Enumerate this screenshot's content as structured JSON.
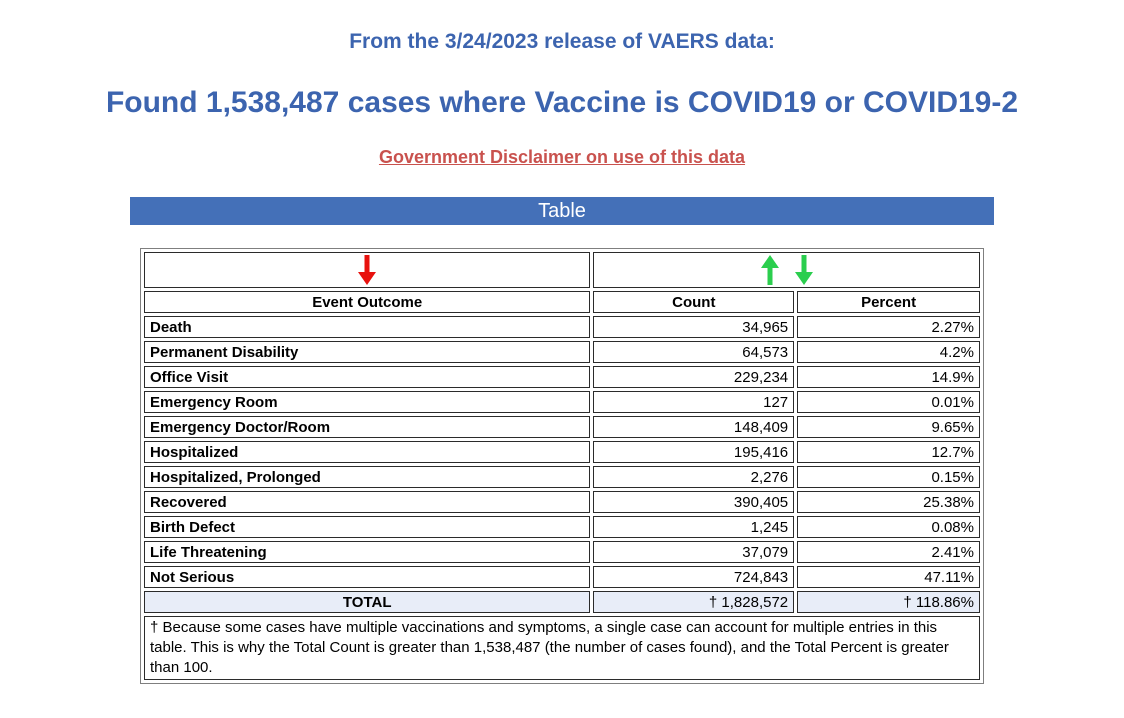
{
  "header": {
    "release_line": "From the 3/24/2023 release of VAERS data:",
    "headline": "Found 1,538,487 cases where Vaccine is COVID19 or COVID19-2",
    "disclaimer_link": "Government Disclaimer on use of this data",
    "banner_title": "Table"
  },
  "colors": {
    "heading_blue": "#3C64AF",
    "banner_blue": "#4470B8",
    "link_red": "#C9524E",
    "arrow_red": "#E8120E",
    "arrow_green": "#2BCE4E",
    "total_row_bg": "#E8EDF8"
  },
  "icons": {
    "outcome_sort": "red-down-arrow-icon",
    "value_sort_up": "green-up-arrow-icon",
    "value_sort_down": "green-down-arrow-icon"
  },
  "table": {
    "columns": [
      "Event Outcome",
      "Count",
      "Percent"
    ],
    "rows": [
      {
        "outcome": "Death",
        "count": "34,965",
        "percent": "2.27%"
      },
      {
        "outcome": "Permanent Disability",
        "count": "64,573",
        "percent": "4.2%"
      },
      {
        "outcome": "Office Visit",
        "count": "229,234",
        "percent": "14.9%"
      },
      {
        "outcome": "Emergency Room",
        "count": "127",
        "percent": "0.01%"
      },
      {
        "outcome": "Emergency Doctor/Room",
        "count": "148,409",
        "percent": "9.65%"
      },
      {
        "outcome": "Hospitalized",
        "count": "195,416",
        "percent": "12.7%"
      },
      {
        "outcome": "Hospitalized, Prolonged",
        "count": "2,276",
        "percent": "0.15%"
      },
      {
        "outcome": "Recovered",
        "count": "390,405",
        "percent": "25.38%"
      },
      {
        "outcome": "Birth Defect",
        "count": "1,245",
        "percent": "0.08%"
      },
      {
        "outcome": "Life Threatening",
        "count": "37,079",
        "percent": "2.41%"
      },
      {
        "outcome": "Not Serious",
        "count": "724,843",
        "percent": "47.11%"
      }
    ],
    "total": {
      "label": "TOTAL",
      "count": "† 1,828,572",
      "percent": "† 118.86%"
    },
    "footnote": "† Because some cases have multiple vaccinations and symptoms, a single case can account for multiple entries in this table. This is why the Total Count is greater than 1,538,487 (the number of cases found), and the Total Percent is greater than 100."
  },
  "chart_data": {
    "type": "table",
    "title": "Found 1,538,487 cases where Vaccine is COVID19 or COVID19-2",
    "subtitle": "From the 3/24/2023 release of VAERS data:",
    "categories": [
      "Death",
      "Permanent Disability",
      "Office Visit",
      "Emergency Room",
      "Emergency Doctor/Room",
      "Hospitalized",
      "Hospitalized, Prolonged",
      "Recovered",
      "Birth Defect",
      "Life Threatening",
      "Not Serious"
    ],
    "series": [
      {
        "name": "Count",
        "values": [
          34965,
          64573,
          229234,
          127,
          148409,
          195416,
          2276,
          390405,
          1245,
          37079,
          724843
        ]
      },
      {
        "name": "Percent",
        "values": [
          2.27,
          4.2,
          14.9,
          0.01,
          9.65,
          12.7,
          0.15,
          25.38,
          0.08,
          2.41,
          47.11
        ]
      }
    ],
    "total": {
      "count": 1828572,
      "percent": 118.86
    }
  }
}
